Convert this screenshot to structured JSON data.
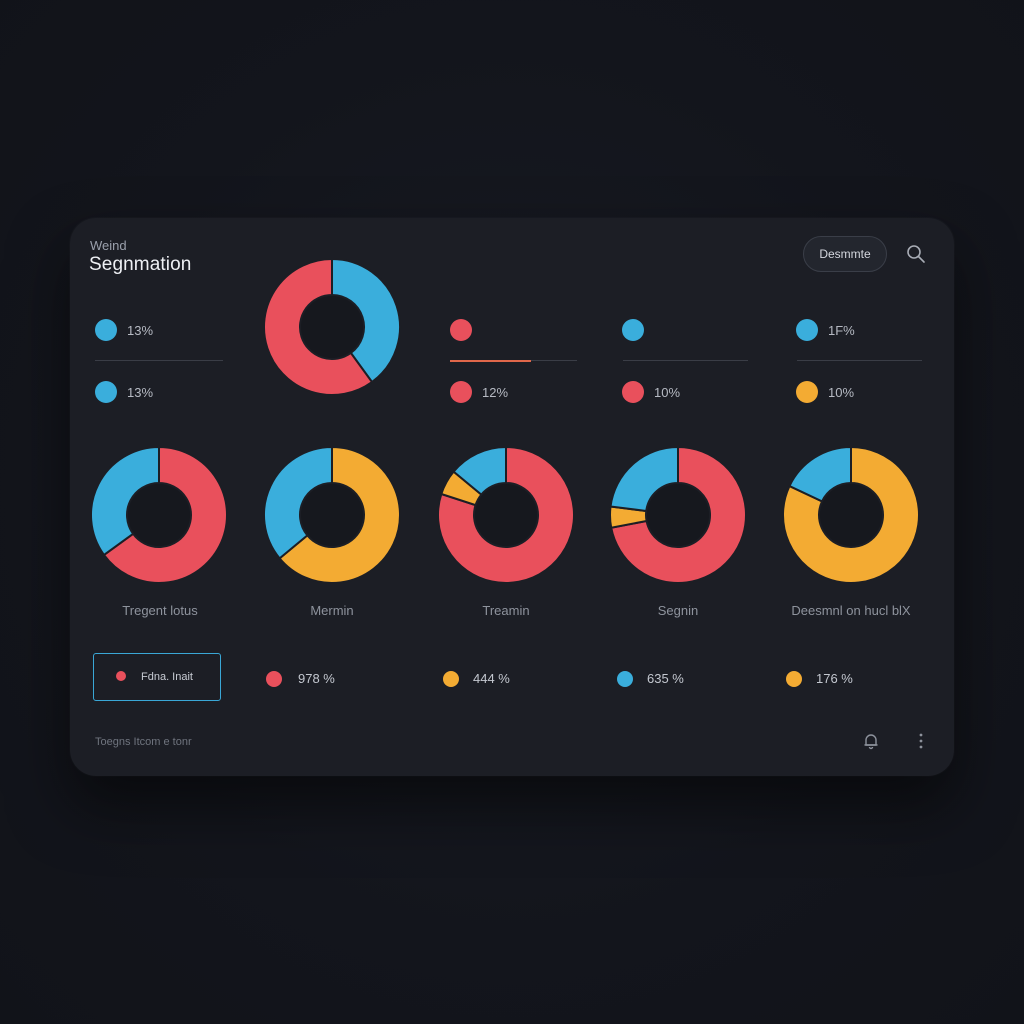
{
  "colors": {
    "red": "#e9505c",
    "blue": "#3aaedc",
    "yellow": "#f3ab33",
    "background": "#13151c",
    "card": "#1c1e25"
  },
  "header": {
    "kicker": "Weind",
    "title": "Segnmation",
    "action_button": "Desmmte",
    "search_icon": "search-icon"
  },
  "legend_rows": {
    "top": [
      {
        "color": "blue",
        "value": "13%"
      },
      {
        "color": "red",
        "value": ""
      },
      {
        "color": "blue",
        "value": ""
      },
      {
        "color": "blue",
        "value": "1F%"
      }
    ],
    "bottom": [
      {
        "color": "blue",
        "value": "13%"
      },
      {
        "color": "red",
        "value": "12%"
      },
      {
        "color": "red",
        "value": "10%"
      },
      {
        "color": "yellow",
        "value": "10%"
      }
    ]
  },
  "chart_data": [
    {
      "type": "pie",
      "donut": true,
      "slices": [
        {
          "color": "blue",
          "value": 40
        },
        {
          "color": "red",
          "value": 60
        }
      ]
    },
    {
      "type": "pie",
      "donut": true,
      "caption": "Tregent lotus",
      "slices": [
        {
          "color": "red",
          "value": 65
        },
        {
          "color": "blue",
          "value": 35
        }
      ]
    },
    {
      "type": "pie",
      "donut": true,
      "caption": "Mermin",
      "slices": [
        {
          "color": "yellow",
          "value": 64
        },
        {
          "color": "blue",
          "value": 36
        }
      ]
    },
    {
      "type": "pie",
      "donut": true,
      "caption": "Treamin",
      "slices": [
        {
          "color": "red",
          "value": 80
        },
        {
          "color": "yellow",
          "value": 6
        },
        {
          "color": "blue",
          "value": 14
        }
      ]
    },
    {
      "type": "pie",
      "donut": true,
      "caption": "Segnin",
      "slices": [
        {
          "color": "red",
          "value": 72
        },
        {
          "color": "yellow",
          "value": 5
        },
        {
          "color": "blue",
          "value": 23
        }
      ]
    },
    {
      "type": "pie",
      "donut": true,
      "caption": "Deesmnl on hucl blX",
      "slices": [
        {
          "color": "yellow",
          "value": 82
        },
        {
          "color": "blue",
          "value": 18
        }
      ]
    }
  ],
  "stats_row": {
    "filter_label": "Fdna. Inait",
    "filter_color": "red",
    "items": [
      {
        "color": "red",
        "value": "978 %"
      },
      {
        "color": "yellow",
        "value": "444 %"
      },
      {
        "color": "blue",
        "value": "635 %"
      },
      {
        "color": "yellow",
        "value": "176 %"
      }
    ]
  },
  "footer": {
    "text": "Toegns Itcom e tonr",
    "bell_icon": "bell-icon",
    "more_icon": "more-vertical-icon"
  }
}
